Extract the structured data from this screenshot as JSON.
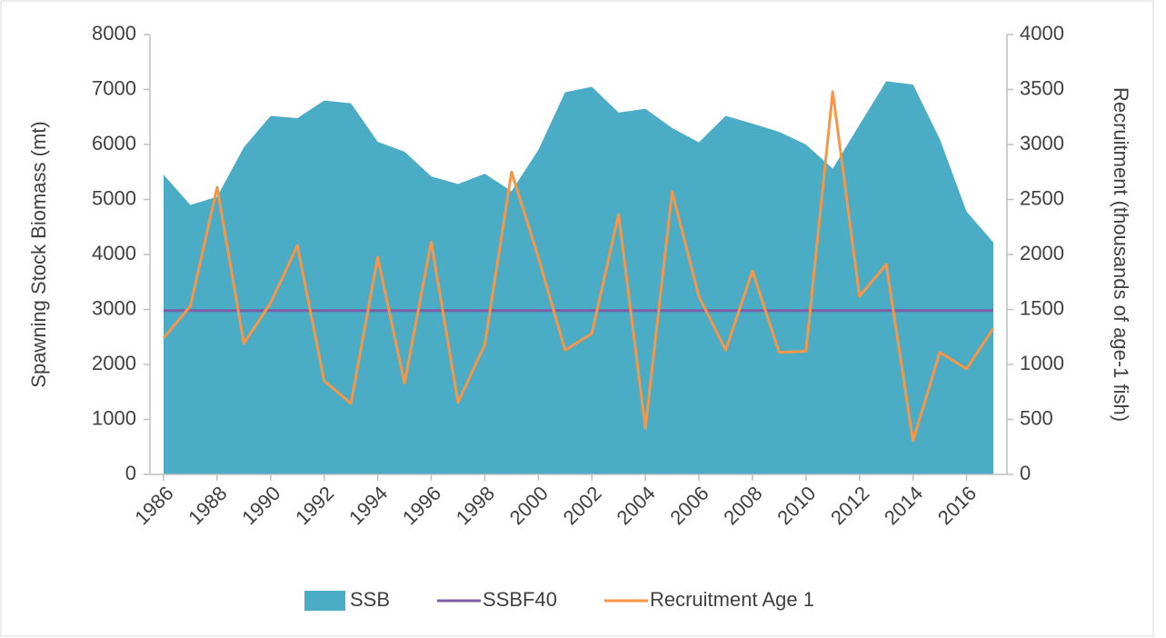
{
  "chart_data": {
    "type": "line",
    "x": [
      1986,
      1987,
      1988,
      1989,
      1990,
      1991,
      1992,
      1993,
      1994,
      1995,
      1996,
      1997,
      1998,
      1999,
      2000,
      2001,
      2002,
      2003,
      2004,
      2005,
      2006,
      2007,
      2008,
      2009,
      2010,
      2011,
      2012,
      2013,
      2014,
      2015,
      2016,
      2017
    ],
    "xlim": [
      1986,
      2017
    ],
    "xticks": [
      1986,
      1988,
      1990,
      1992,
      1994,
      1996,
      1998,
      2000,
      2002,
      2004,
      2006,
      2008,
      2010,
      2012,
      2014,
      2016
    ],
    "ylabel": "Spawning Stock Biomass (mt)",
    "y2label": "Recruitment (thousands of age-1 fish)",
    "ylim": [
      0,
      8000
    ],
    "yticks": [
      0,
      1000,
      2000,
      3000,
      4000,
      5000,
      6000,
      7000,
      8000
    ],
    "y2lim": [
      0,
      4000
    ],
    "y2ticks": [
      0,
      500,
      1000,
      1500,
      2000,
      2500,
      3000,
      3500,
      4000
    ],
    "legend": "bottom",
    "series": [
      {
        "name": "SSB",
        "type": "area",
        "color": "#4bacc6",
        "values": [
          5450,
          4900,
          5050,
          5950,
          6520,
          6480,
          6800,
          6750,
          6050,
          5870,
          5420,
          5280,
          5470,
          5150,
          5900,
          6950,
          7050,
          6580,
          6650,
          6300,
          6040,
          6520,
          6380,
          6230,
          6000,
          5560,
          6360,
          7150,
          7090,
          6100,
          4780,
          4220
        ]
      },
      {
        "name": "SSBF40",
        "type": "line",
        "color": "#7b5ea7",
        "values": [
          2980,
          2980,
          2980,
          2980,
          2980,
          2980,
          2980,
          2980,
          2980,
          2980,
          2980,
          2980,
          2980,
          2980,
          2980,
          2980,
          2980,
          2980,
          2980,
          2980,
          2980,
          2980,
          2980,
          2980,
          2980,
          2980,
          2980,
          2980,
          2980,
          2980,
          2980,
          2980
        ]
      },
      {
        "name": "Recruitment Age 1",
        "type": "line",
        "axis": "y2",
        "color": "#f79646",
        "values": [
          1240,
          1530,
          2610,
          1190,
          1560,
          2080,
          850,
          645,
          1975,
          830,
          2115,
          655,
          1180,
          2750,
          1975,
          1130,
          1280,
          2365,
          420,
          2570,
          1620,
          1130,
          1850,
          1110,
          1120,
          3480,
          1620,
          1910,
          305,
          1110,
          960,
          1330
        ]
      }
    ]
  }
}
